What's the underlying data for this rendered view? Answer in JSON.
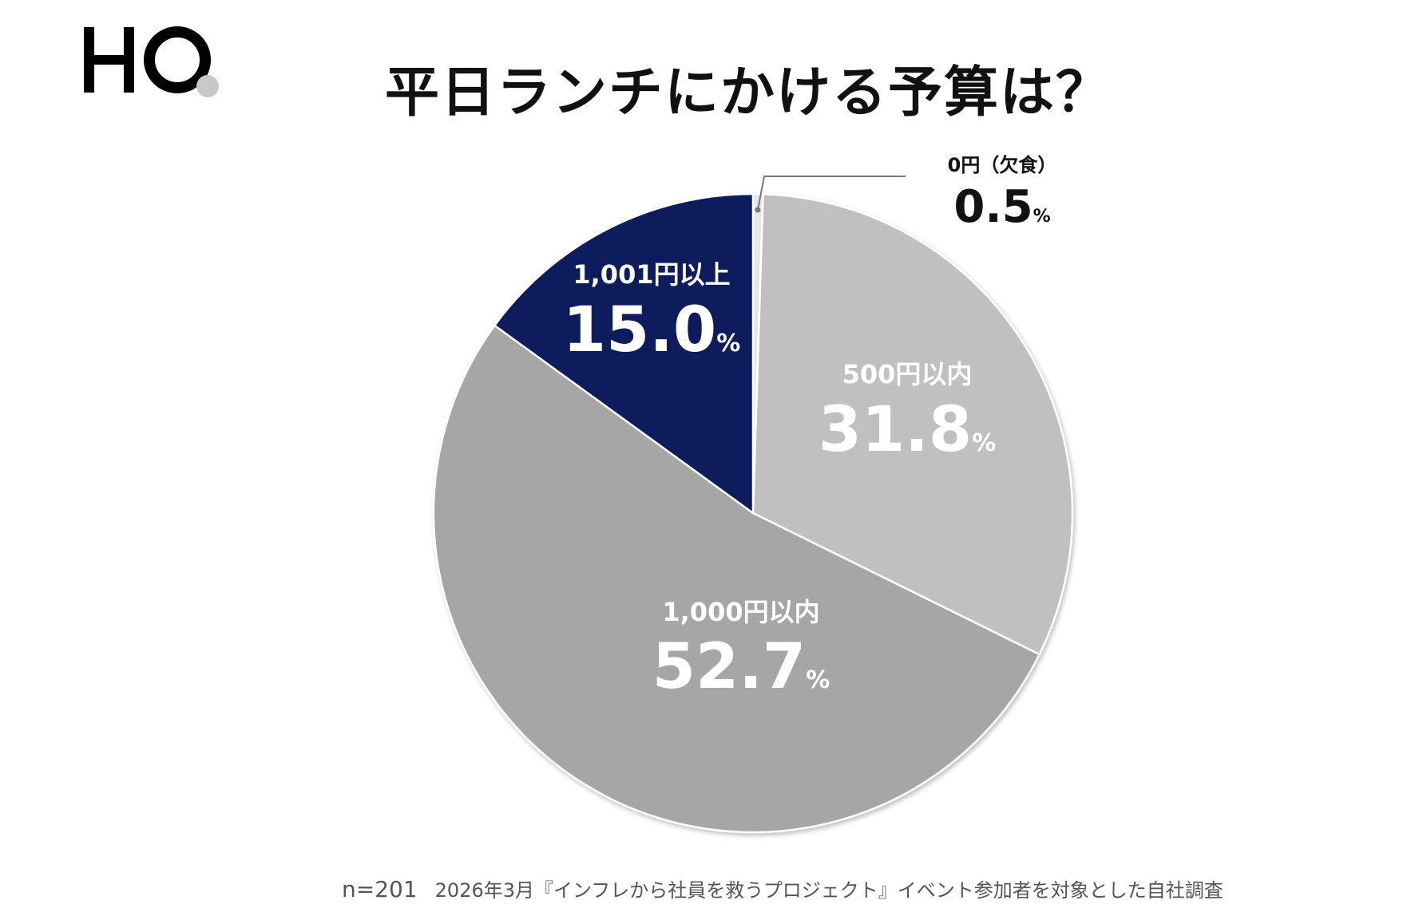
{
  "logo_text": "HQ",
  "title": "平日ランチにかける予算は？",
  "chart_data": {
    "type": "pie",
    "title": "平日ランチにかける予算は？",
    "start": "12 o'clock, clockwise",
    "unit": "%",
    "slices": [
      {
        "label": "0円（欠食）",
        "value": 0.5,
        "display": "0.5",
        "color": "#e6e6e6",
        "label_color": "#111111"
      },
      {
        "label": "500円以内",
        "value": 31.8,
        "display": "31.8",
        "color": "#c0c0c0",
        "label_color": "#ffffff"
      },
      {
        "label": "1,000円以内",
        "value": 52.7,
        "display": "52.7",
        "color": "#a6a6a6",
        "label_color": "#ffffff"
      },
      {
        "label": "1,001円以上",
        "value": 15.0,
        "display": "15.0",
        "color": "#0b1f5c",
        "label_color": "#ffffff"
      }
    ]
  },
  "footer": {
    "sample": "n=201",
    "note": "2026年3月『インフレから社員を救うプロジェクト』イベント参加者を対象とした自社調査"
  }
}
